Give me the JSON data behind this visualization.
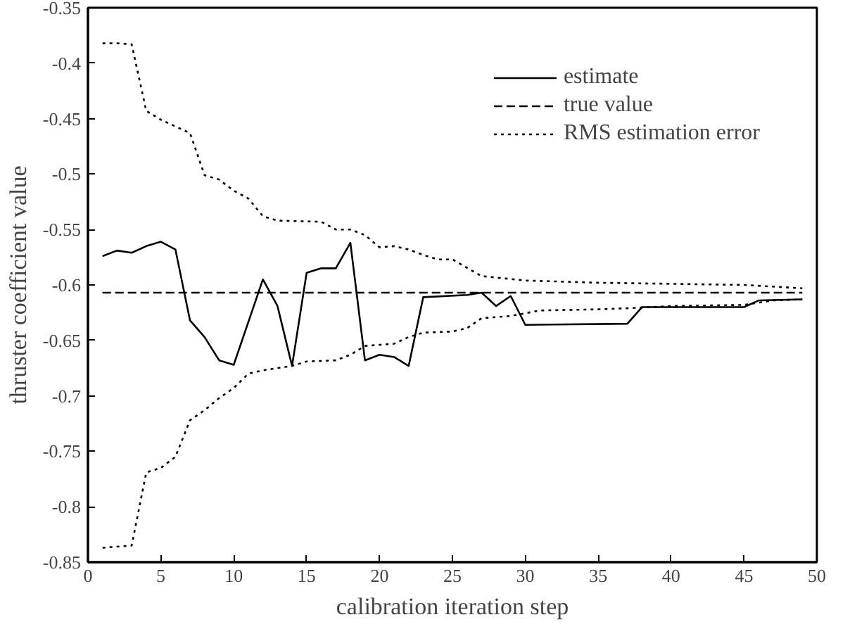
{
  "chart_data": {
    "type": "line",
    "xlabel": "calibration iteration step",
    "ylabel": "thruster coefficient value",
    "xlim": [
      0,
      50
    ],
    "ylim": [
      -0.85,
      -0.35
    ],
    "xticks": [
      0,
      5,
      10,
      15,
      20,
      25,
      30,
      35,
      40,
      45,
      50
    ],
    "yticks": [
      -0.85,
      -0.8,
      -0.75,
      -0.7,
      -0.65,
      -0.6,
      -0.55,
      -0.5,
      -0.45,
      -0.4,
      -0.35
    ],
    "grid": false,
    "legend": "top right",
    "marker": "none",
    "series": [
      {
        "name": "estimate",
        "color": "#000000",
        "line_style": "solid",
        "x": [
          1,
          2,
          3,
          4,
          5,
          6,
          7,
          8,
          9,
          10,
          12,
          13,
          14,
          15,
          16,
          17,
          18,
          19,
          20,
          21,
          22,
          23,
          26,
          27,
          28,
          29,
          30,
          37,
          38,
          45,
          46,
          49
        ],
        "values": [
          -0.574,
          -0.569,
          -0.571,
          -0.565,
          -0.561,
          -0.568,
          -0.632,
          -0.647,
          -0.668,
          -0.672,
          -0.595,
          -0.619,
          -0.673,
          -0.589,
          -0.585,
          -0.585,
          -0.562,
          -0.668,
          -0.663,
          -0.665,
          -0.673,
          -0.611,
          -0.609,
          -0.607,
          -0.619,
          -0.61,
          -0.636,
          -0.635,
          -0.62,
          -0.62,
          -0.614,
          -0.613
        ]
      },
      {
        "name": "true value",
        "color": "#000000",
        "line_style": "dashed",
        "x": [
          1,
          49
        ],
        "values": [
          -0.607,
          -0.607
        ]
      },
      {
        "name": "RMS estimation error",
        "color": "#000000",
        "line_style": "dotted",
        "x": [
          1,
          2,
          3,
          4,
          5,
          6,
          7,
          8,
          9,
          10,
          11,
          12,
          13,
          16,
          17,
          18,
          19,
          20,
          21,
          22,
          23,
          24,
          25,
          27,
          30,
          35,
          40,
          45,
          49
        ],
        "values": [
          -0.382,
          -0.382,
          -0.383,
          -0.443,
          -0.451,
          -0.457,
          -0.463,
          -0.501,
          -0.505,
          -0.515,
          -0.522,
          -0.538,
          -0.542,
          -0.543,
          -0.55,
          -0.55,
          -0.555,
          -0.566,
          -0.565,
          -0.568,
          -0.573,
          -0.577,
          -0.577,
          -0.592,
          -0.596,
          -0.598,
          -0.599,
          -0.6,
          -0.603
        ]
      },
      {
        "color": "#000000",
        "line_style": "dotted",
        "x": [
          1,
          3,
          4,
          5,
          6,
          7,
          8,
          9,
          10,
          11,
          12,
          13,
          14,
          15,
          17,
          18,
          19,
          21,
          22,
          23,
          25,
          26,
          27,
          29,
          31,
          35,
          37,
          40,
          45,
          47,
          49
        ],
        "values": [
          -0.837,
          -0.835,
          -0.769,
          -0.765,
          -0.755,
          -0.722,
          -0.713,
          -0.702,
          -0.693,
          -0.68,
          -0.677,
          -0.675,
          -0.673,
          -0.669,
          -0.668,
          -0.663,
          -0.655,
          -0.653,
          -0.647,
          -0.643,
          -0.642,
          -0.639,
          -0.63,
          -0.628,
          -0.623,
          -0.622,
          -0.621,
          -0.619,
          -0.618,
          -0.614,
          -0.613
        ]
      }
    ]
  }
}
